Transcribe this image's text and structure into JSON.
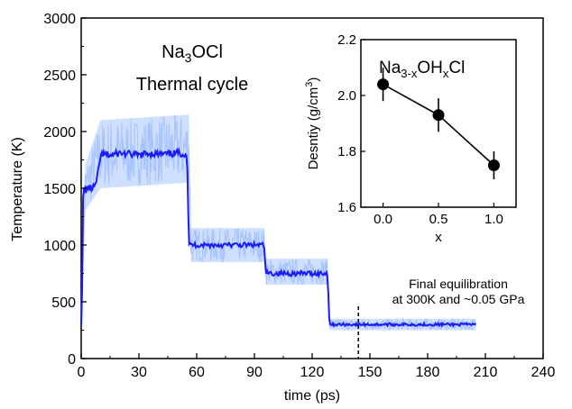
{
  "chart_data": [
    {
      "type": "line",
      "xlabel": "time (ps)",
      "ylabel": "Temperature (K)",
      "xlim": [
        0,
        240
      ],
      "ylim": [
        0,
        3000
      ],
      "xticks": [
        "0",
        "30",
        "60",
        "90",
        "120",
        "150",
        "180",
        "210",
        "240"
      ],
      "yticks": [
        "0",
        "500",
        "1000",
        "1500",
        "2000",
        "2500",
        "3000"
      ],
      "title_lines": [
        "Na3OCl",
        "Thermal cycle"
      ],
      "title_formula": {
        "base1": "Na",
        "sub1": "3",
        "base2": "OCl"
      },
      "title_line2": "Thermal cycle",
      "annotation_lines": [
        "Final equilibration",
        "at 300K and ~0.05 GPa"
      ],
      "vline_x": 144,
      "grid": false,
      "series": [
        {
          "style": "running-average",
          "color": "#1a1aff",
          "x": [
            0,
            0.5,
            1,
            2,
            2.5,
            3,
            6,
            8,
            10,
            11,
            15,
            20,
            25,
            30,
            35,
            40,
            45,
            50,
            55,
            56,
            57,
            60,
            70,
            80,
            90,
            95,
            96,
            100,
            110,
            120,
            128,
            129,
            130,
            140,
            150,
            160,
            170,
            180,
            190,
            200,
            205
          ],
          "y": [
            300,
            600,
            1450,
            1500,
            1480,
            1500,
            1500,
            1550,
            1780,
            1800,
            1790,
            1810,
            1800,
            1790,
            1810,
            1800,
            1800,
            1810,
            1800,
            1000,
            1000,
            1000,
            1000,
            1000,
            1000,
            1000,
            750,
            750,
            750,
            750,
            750,
            300,
            300,
            300,
            300,
            300,
            300,
            300,
            300,
            300,
            300
          ]
        },
        {
          "style": "instantaneous",
          "color": "#a8c4ff",
          "band_x": [
            0,
            2,
            10,
            56,
            57,
            95,
            96,
            128,
            129,
            205
          ],
          "band_low": [
            300,
            1300,
            1500,
            1550,
            850,
            850,
            650,
            650,
            250,
            250
          ],
          "band_high": [
            300,
            1700,
            2100,
            2150,
            1150,
            1150,
            880,
            880,
            350,
            350
          ]
        }
      ]
    },
    {
      "type": "scatter",
      "xlabel": "x",
      "ylabel": "Desntiy (g/cm",
      "ylabel_sup": "3",
      "ylabel_close": ")",
      "xlim": [
        -0.2,
        1.2
      ],
      "ylim": [
        1.6,
        2.2
      ],
      "xticks": [
        "0.0",
        "0.5",
        "1.0"
      ],
      "yticks": [
        "1.6",
        "1.8",
        "2.0",
        "2.2"
      ],
      "legend": {
        "base1": "Na",
        "sub1": "3-x",
        "base2": "OH",
        "sub2": "x",
        "base3": "Cl"
      },
      "x": [
        0.0,
        0.5,
        1.0
      ],
      "y": [
        2.04,
        1.93,
        1.75
      ],
      "yerr": [
        0.06,
        0.06,
        0.05
      ],
      "connected": true
    }
  ]
}
